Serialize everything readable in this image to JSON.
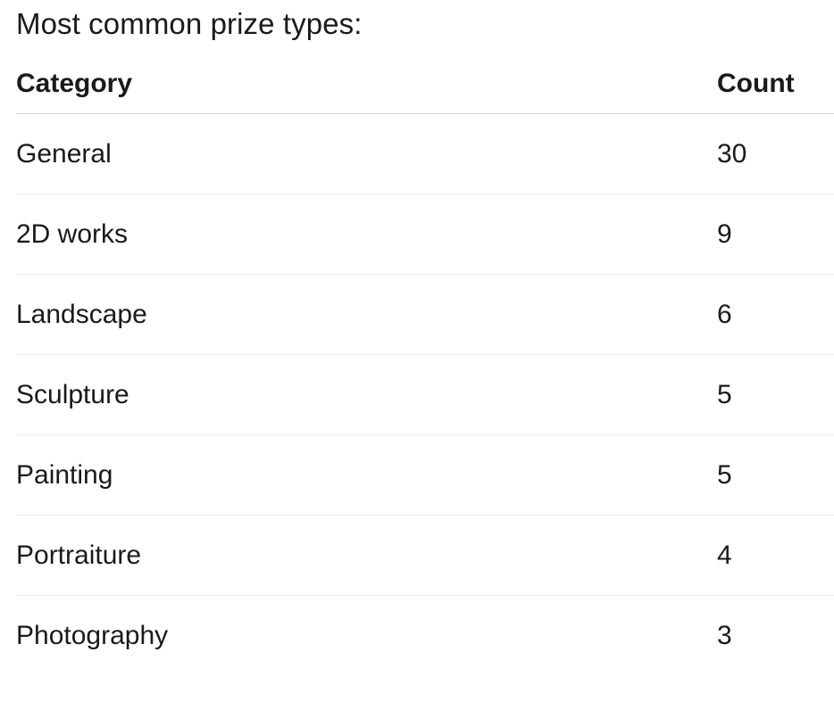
{
  "title": "Most common prize types:",
  "table": {
    "headers": {
      "category": "Category",
      "count": "Count"
    },
    "rows": [
      {
        "category": "General",
        "count": "30"
      },
      {
        "category": "2D works",
        "count": "9"
      },
      {
        "category": "Landscape",
        "count": "6"
      },
      {
        "category": "Sculpture",
        "count": "5"
      },
      {
        "category": "Painting",
        "count": "5"
      },
      {
        "category": "Portraiture",
        "count": "4"
      },
      {
        "category": "Photography",
        "count": "3"
      }
    ]
  },
  "colors": {
    "text": "#1a1a1a",
    "background": "#ffffff",
    "header_divider": "#d4d4d4",
    "row_divider": "#ececec"
  },
  "chart_data": {
    "type": "table",
    "title": "Most common prize types:",
    "columns": [
      "Category",
      "Count"
    ],
    "categories": [
      "General",
      "2D works",
      "Landscape",
      "Sculpture",
      "Painting",
      "Portraiture",
      "Photography"
    ],
    "values": [
      30,
      9,
      6,
      5,
      5,
      4,
      3
    ],
    "legend_position": "none",
    "grid": false
  }
}
